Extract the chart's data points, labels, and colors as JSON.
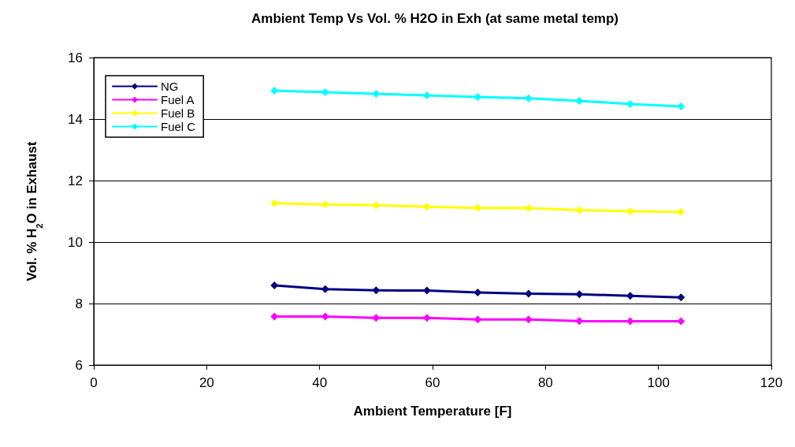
{
  "chart_data": {
    "type": "line",
    "title": "Ambient Temp Vs Vol. % H2O in Exh (at same metal temp)",
    "xlabel": "Ambient Temperature [F]",
    "ylabel": "Vol. % H$_{2}$O in Exhaust",
    "x": [
      32,
      41,
      50,
      59,
      68,
      77,
      86,
      95,
      104
    ],
    "series": [
      {
        "name": "NG",
        "color": "#000080",
        "values": [
          8.59,
          8.47,
          8.43,
          8.42,
          8.36,
          8.32,
          8.3,
          8.25,
          8.2
        ]
      },
      {
        "name": "Fuel A",
        "color": "#ff00ff",
        "values": [
          7.58,
          7.58,
          7.53,
          7.53,
          7.48,
          7.48,
          7.43,
          7.42,
          7.42
        ]
      },
      {
        "name": "Fuel B",
        "color": "#ffff00",
        "values": [
          11.26,
          11.22,
          11.2,
          11.15,
          11.11,
          11.1,
          11.04,
          11.0,
          10.98
        ]
      },
      {
        "name": "Fuel C",
        "color": "#00ffff",
        "values": [
          14.92,
          14.87,
          14.82,
          14.77,
          14.72,
          14.67,
          14.59,
          14.49,
          14.41
        ]
      }
    ],
    "xlim": [
      0,
      120
    ],
    "xticks": [
      0,
      20,
      40,
      60,
      80,
      100,
      120
    ],
    "ylim": [
      6,
      16
    ],
    "yticks": [
      6,
      8,
      10,
      12,
      14,
      16
    ],
    "grid": "y",
    "legend": "top left",
    "marker": "diamond",
    "line_style": "solid"
  }
}
